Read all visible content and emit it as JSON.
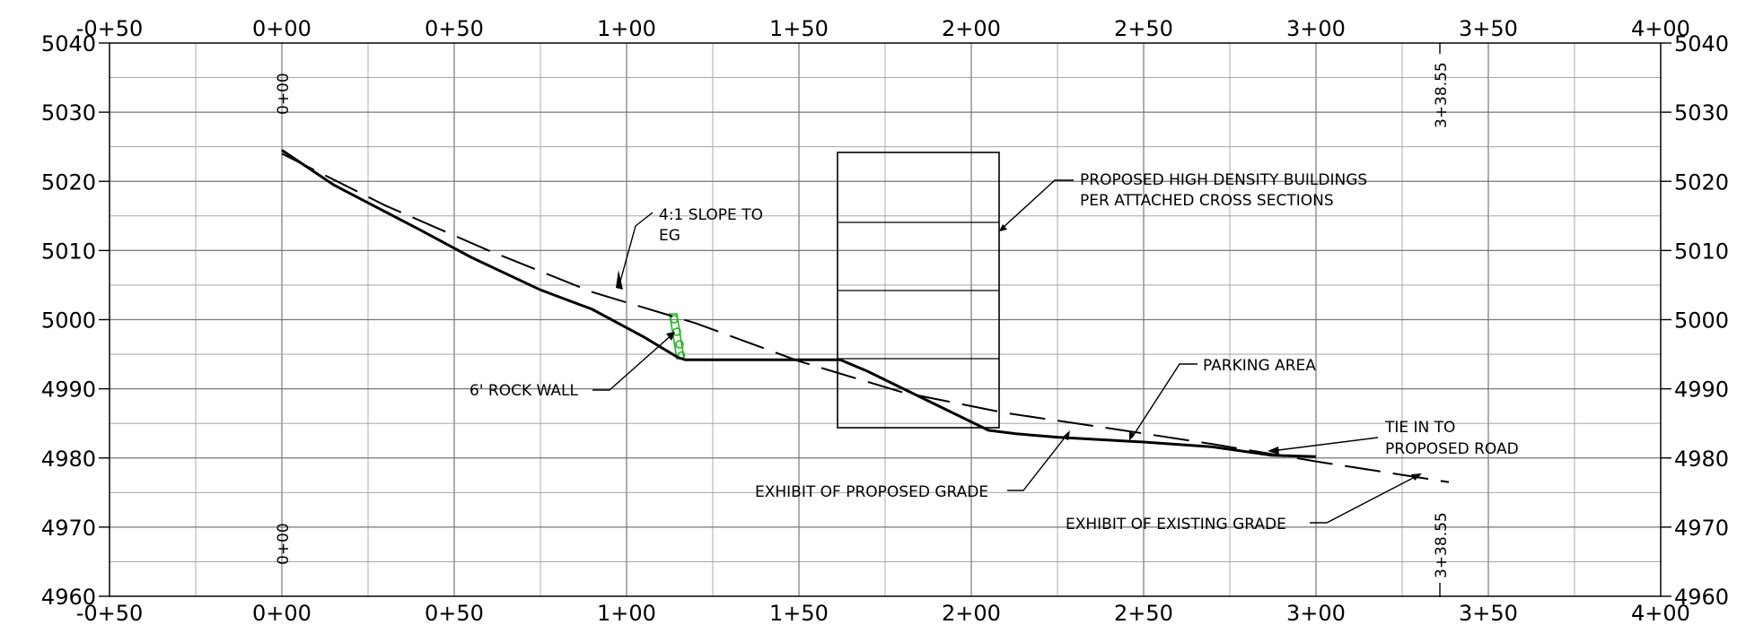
{
  "profile": {
    "stations_top": [
      "-0+50",
      "0+00",
      "0+50",
      "1+00",
      "1+50",
      "2+00",
      "2+50",
      "3+00",
      "3+50",
      "4+00"
    ],
    "stations_bottom": [
      "-0+50",
      "0+00",
      "0+50",
      "1+00",
      "1+50",
      "2+00",
      "2+50",
      "3+00",
      "3+50",
      "4+00"
    ],
    "elevations_left": [
      "5040",
      "5030",
      "5020",
      "5010",
      "5000",
      "4990",
      "4980",
      "4970",
      "4960"
    ],
    "elevations_right": [
      "5040",
      "5030",
      "5020",
      "5010",
      "5000",
      "4990",
      "4980",
      "4970",
      "4960"
    ],
    "begin_station": "0+00",
    "end_station": "3+38.55",
    "colors": {
      "grid": "#777777",
      "line": "#000000",
      "rock_wall": "#1db31d"
    }
  },
  "annotations": {
    "slope": [
      "4:1 SLOPE TO",
      "EG"
    ],
    "rock_wall": "6' ROCK WALL",
    "buildings": [
      "PROPOSED HIGH DENSITY BUILDINGS",
      "PER ATTACHED CROSS SECTIONS"
    ],
    "parking": "PARKING AREA",
    "tie_in": [
      "TIE IN TO",
      "PROPOSED ROAD"
    ],
    "proposed_grade": "EXHIBIT OF PROPOSED GRADE",
    "existing_grade": "EXHIBIT OF EXISTING GRADE"
  },
  "chart_data": {
    "type": "line",
    "xlabel": "",
    "ylabel": "",
    "xlim": [
      -50,
      400
    ],
    "ylim": [
      4960,
      5040
    ],
    "series": [
      {
        "x": [
          0,
          15,
          40,
          55,
          75,
          90,
          105,
          115,
          117,
          162,
          170,
          205,
          213,
          225,
          250,
          270,
          287,
          300
        ],
        "y": [
          5024.5,
          5019.5,
          5013,
          5009,
          5004.3,
          5001.5,
          4997.5,
          4994.5,
          4994.2,
          4994.2,
          4992.5,
          4984,
          4983.5,
          4983,
          4982.3,
          4981.6,
          4980.4,
          4980.2
        ]
      },
      {
        "x": [
          0,
          30,
          60,
          90,
          120,
          150,
          180,
          210,
          240,
          270,
          300,
          338.55
        ],
        "y": [
          5024,
          5016.5,
          5010,
          5004,
          4999.5,
          4994,
          4989.5,
          4986.5,
          4984.3,
          4982,
          4979.5,
          4976.5
        ]
      }
    ]
  }
}
